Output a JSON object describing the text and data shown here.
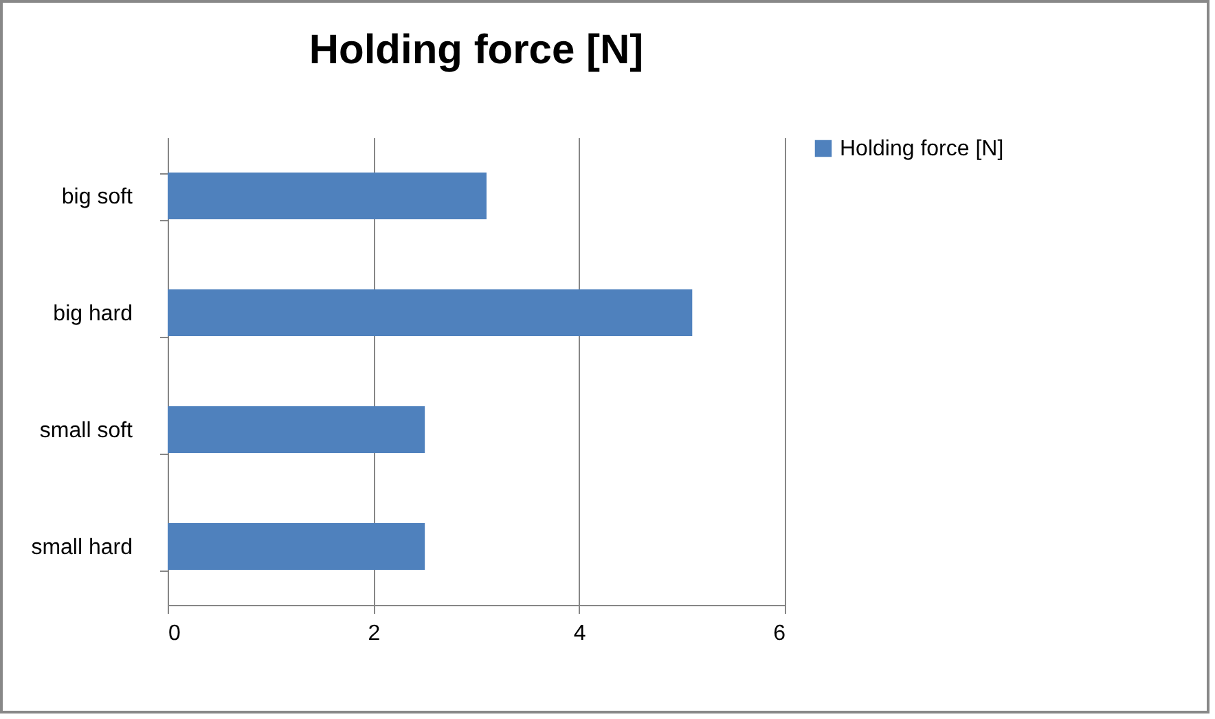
{
  "chart_data": {
    "type": "bar",
    "title": "Holding force [N]",
    "orientation": "horizontal",
    "categories": [
      "big soft",
      "big hard",
      "small soft",
      "small hard"
    ],
    "series": [
      {
        "name": "Holding force [N]",
        "color": "#4f81bd",
        "values": [
          3.1,
          5.1,
          2.5,
          2.5
        ]
      }
    ],
    "xlim": [
      0,
      6
    ],
    "xticks": [
      0,
      2,
      4,
      6
    ],
    "grid": "x",
    "legend": "right"
  }
}
